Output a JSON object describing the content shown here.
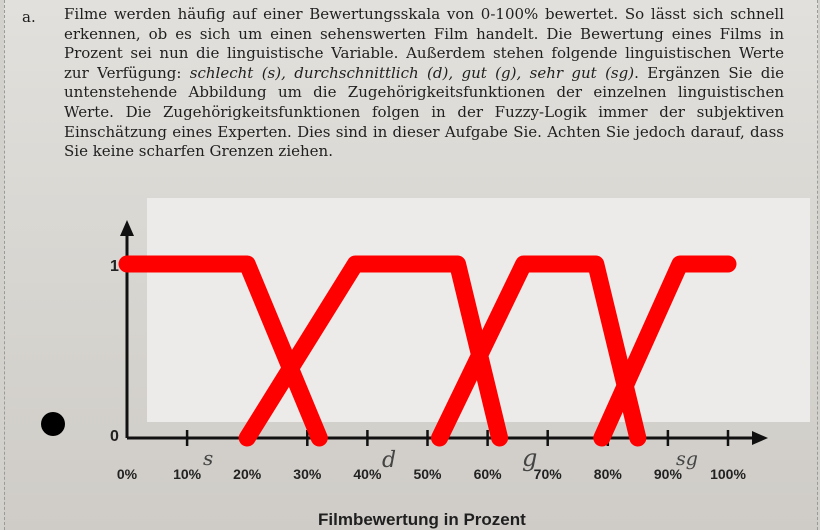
{
  "task": {
    "letter": "a.",
    "text_1": "Filme werden häufig auf einer Bewertungsskala von 0-100% bewertet. So lässt sich schnell erkennen, ob es sich um einen sehenswerten Film handelt. Die Bewertung eines Films in Prozent sei nun die linguistische Variable. Außerdem stehen folgende linguistischen Werte zur Verfügung: ",
    "values_text": "schlecht (s), durchschnittlich (d), gut (g), sehr gut (sg)",
    "text_2": ". Ergänzen Sie die untenstehende Abbildung um die Zugehörigkeitsfunktionen der einzelnen linguistischen Werte. Die Zugehörigkeitsfunktionen folgen in der Fuzzy-Logik immer der subjektiven Einschätzung eines Experten. Dies sind in dieser Aufgabe Sie. Achten Sie jedoch darauf, dass Sie keine scharfen Grenzen ziehen."
  },
  "chart_data": {
    "type": "line",
    "xlabel": "Filmbewertung in Prozent",
    "ylabel": "",
    "x_ticks": [
      "0%",
      "10%",
      "20%",
      "30%",
      "40%",
      "50%",
      "60%",
      "70%",
      "80%",
      "90%",
      "100%"
    ],
    "y_ticks": [
      "0",
      "1"
    ],
    "xlim": [
      0,
      100
    ],
    "ylim": [
      0,
      1
    ],
    "stroke_color": "#ff0000",
    "handwritten_labels": [
      "s",
      "d",
      "g",
      "sg"
    ],
    "series": [
      {
        "name": "s",
        "x": [
          0,
          20,
          32
        ],
        "y": [
          1,
          1,
          0
        ]
      },
      {
        "name": "d",
        "x": [
          20,
          38,
          55,
          62
        ],
        "y": [
          0,
          1,
          1,
          0
        ]
      },
      {
        "name": "g",
        "x": [
          52,
          66,
          78,
          85
        ],
        "y": [
          0,
          1,
          1,
          0
        ]
      },
      {
        "name": "sg",
        "x": [
          79,
          92,
          100
        ],
        "y": [
          0,
          1,
          1
        ]
      }
    ]
  }
}
